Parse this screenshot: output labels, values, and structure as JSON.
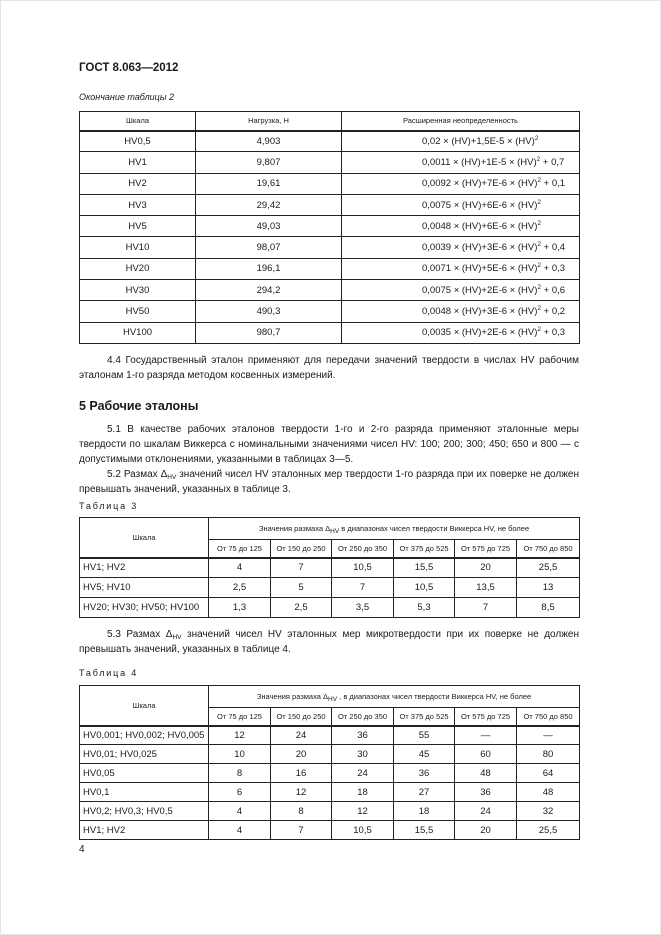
{
  "header": "ГОСТ 8.063—2012",
  "table2": {
    "caption": "Окончание таблицы 2",
    "columns": [
      "Шкала",
      "Нагрузка, Н",
      "Расширенная неопределенность"
    ],
    "rows": [
      {
        "scale": "HV0,5",
        "load": "4,903",
        "formula": "0,02 × (HV)+1,5E-5 × (HV)",
        "exp": "2",
        "tail": ""
      },
      {
        "scale": "HV1",
        "load": "9,807",
        "formula": "0,0011 × (HV)+1E-5 × (HV)",
        "exp": "2",
        "tail": " + 0,7"
      },
      {
        "scale": "HV2",
        "load": "19,61",
        "formula": "0,0092 × (HV)+7E-6 × (HV)",
        "exp": "2",
        "tail": " + 0,1"
      },
      {
        "scale": "HV3",
        "load": "29,42",
        "formula": "0,0075 × (HV)+6E-6 × (HV)",
        "exp": "2",
        "tail": ""
      },
      {
        "scale": "HV5",
        "load": "49,03",
        "formula": "0,0048 × (HV)+6E-6 × (HV)",
        "exp": "2",
        "tail": ""
      },
      {
        "scale": "HV10",
        "load": "98,07",
        "formula": "0,0039 × (HV)+3E-6 × (HV)",
        "exp": "2",
        "tail": " + 0,4"
      },
      {
        "scale": "HV20",
        "load": "196,1",
        "formula": "0,0071 × (HV)+5E-6 × (HV)",
        "exp": "2",
        "tail": " + 0,3"
      },
      {
        "scale": "HV30",
        "load": "294,2",
        "formula": "0,0075 × (HV)+2E-6 × (HV)",
        "exp": "2",
        "tail": " + 0,6"
      },
      {
        "scale": "HV50",
        "load": "490,3",
        "formula": "0,0048 × (HV)+3E-6 × (HV)",
        "exp": "2",
        "tail": " + 0,2"
      },
      {
        "scale": "HV100",
        "load": "980,7",
        "formula": "0,0035 × (HV)+2E-6 × (HV)",
        "exp": "2",
        "tail": " + 0,3"
      }
    ]
  },
  "para_4_4": "4.4 Государственный эталон применяют для передачи значений твердости в числах HV рабочим эталонам 1-го разряда методом косвенных измерений.",
  "section5_title": "5 Рабочие эталоны",
  "para_5_1": "5.1 В качестве рабочих эталонов твердости 1-го и 2-го разряда применяют эталонные меры твердости по шкалам Виккерса с номинальными значениями чисел HV: 100; 200; 300; 450; 650 и 800 — с допустимыми отклонениями, указанными в таблицах 3—5.",
  "para_5_2": {
    "before": "5.2 Размах Δ",
    "sub": "HV",
    "after": " значений чисел HV эталонных мер твердости 1-го разряда при их поверке не должен превышать значений, указанных в таблице 3."
  },
  "para_5_3": {
    "before": "5.3 Размах Δ",
    "sub": "HV",
    "after": " значений чисел HV эталонных мер микротвердости при их поверке не должен превышать значений, указанных в таблице 4."
  },
  "table3": {
    "caption": "Таблица 3",
    "scale_header": "Шкала",
    "group_header": {
      "before": "Значения размаха Δ",
      "sub": "HV",
      "after": " в диапазонах чисел твердости Виккерса HV, не более"
    },
    "ranges": [
      "От 75 до 125",
      "От 150 до 250",
      "От 250 до 350",
      "От 375 до 525",
      "От 575 до 725",
      "От 750 до 850"
    ],
    "rows": [
      {
        "scale": "HV1; HV2",
        "values": [
          "4",
          "7",
          "10,5",
          "15,5",
          "20",
          "25,5"
        ]
      },
      {
        "scale": "HV5; HV10",
        "values": [
          "2,5",
          "5",
          "7",
          "10,5",
          "13,5",
          "13"
        ]
      },
      {
        "scale": "HV20; HV30; HV50; HV100",
        "values": [
          "1,3",
          "2,5",
          "3,5",
          "5,3",
          "7",
          "8,5"
        ]
      }
    ]
  },
  "table4": {
    "caption": "Таблица 4",
    "scale_header": "Шкала",
    "group_header": {
      "before": "Значения размаха Δ",
      "sub": "HV",
      "after": " , в диапазонах чисел твердости Виккерса HV, не более"
    },
    "ranges": [
      "От 75 до 125",
      "От 150 до 250",
      "От 250 до 350",
      "От 375 до 525",
      "От 575 до 725",
      "От 750 до 850"
    ],
    "rows": [
      {
        "scale": "HV0,001; HV0,002; HV0,005",
        "values": [
          "12",
          "24",
          "36",
          "55",
          "—",
          "—"
        ]
      },
      {
        "scale": "HV0,01; HV0,025",
        "values": [
          "10",
          "20",
          "30",
          "45",
          "60",
          "80"
        ]
      },
      {
        "scale": "HV0,05",
        "values": [
          "8",
          "16",
          "24",
          "36",
          "48",
          "64"
        ]
      },
      {
        "scale": "HV0,1",
        "values": [
          "6",
          "12",
          "18",
          "27",
          "36",
          "48"
        ]
      },
      {
        "scale": "HV0,2; HV0,3; HV0,5",
        "values": [
          "4",
          "8",
          "12",
          "18",
          "24",
          "32"
        ]
      },
      {
        "scale": "HV1; HV2",
        "values": [
          "4",
          "7",
          "10,5",
          "15,5",
          "20",
          "25,5"
        ]
      }
    ]
  },
  "page_number": "4"
}
